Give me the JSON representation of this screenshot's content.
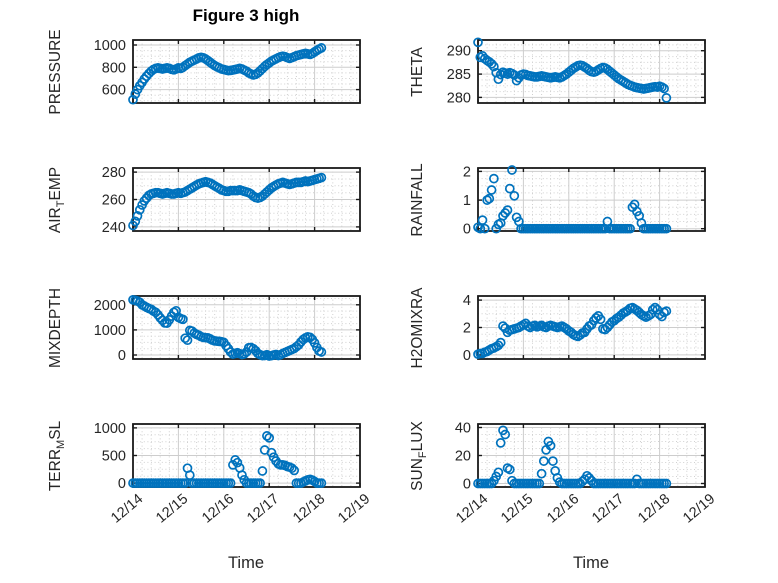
{
  "figure": {
    "title": "Figure 3 high",
    "xlabel": "Time",
    "marker_color": "#0072BD",
    "axis_color": "#1a1a1a",
    "major_grid_color": "#cdcdcd",
    "minor_grid_color": "#d0d0d0",
    "tick_label_color": "#262626",
    "background": "#ffffff"
  },
  "x_axis": {
    "label": "Time",
    "tick_labels": [
      "12/14",
      "12/15",
      "12/16",
      "12/17",
      "12/18",
      "12/19"
    ],
    "tick_positions_days": [
      0,
      1,
      2,
      3,
      4,
      5
    ],
    "xlim_days": [
      0,
      5
    ]
  },
  "x_days": [
    0,
    0.05,
    0.1,
    0.15,
    0.2,
    0.25,
    0.3,
    0.35,
    0.4,
    0.45,
    0.5,
    0.55,
    0.6,
    0.65,
    0.7,
    0.75,
    0.8,
    0.85,
    0.9,
    0.95,
    1,
    1.05,
    1.1,
    1.15,
    1.2,
    1.25,
    1.3,
    1.35,
    1.4,
    1.45,
    1.5,
    1.55,
    1.6,
    1.65,
    1.7,
    1.75,
    1.8,
    1.85,
    1.9,
    1.95,
    2,
    2.05,
    2.1,
    2.15,
    2.2,
    2.25,
    2.3,
    2.35,
    2.4,
    2.45,
    2.5,
    2.55,
    2.6,
    2.65,
    2.7,
    2.75,
    2.8,
    2.85,
    2.9,
    2.95,
    3,
    3.05,
    3.1,
    3.15,
    3.2,
    3.25,
    3.3,
    3.35,
    3.4,
    3.45,
    3.5,
    3.55,
    3.6,
    3.65,
    3.7,
    3.75,
    3.8,
    3.85,
    3.9,
    3.95,
    4,
    4.05,
    4.1,
    4.15
  ],
  "chart_data": [
    {
      "type": "scatter",
      "id": "pressure",
      "ylabel_pre": "PRESSURE",
      "ylabel_sub": "",
      "ylabel_post": "",
      "yticks": [
        600,
        800,
        1000
      ],
      "ylim": [
        480,
        1045
      ],
      "y": [
        510,
        560,
        600,
        635,
        665,
        695,
        720,
        745,
        765,
        780,
        790,
        795,
        790,
        785,
        790,
        795,
        790,
        782,
        778,
        785,
        795,
        790,
        800,
        815,
        830,
        845,
        855,
        865,
        875,
        885,
        890,
        885,
        875,
        860,
        845,
        830,
        815,
        805,
        795,
        785,
        780,
        775,
        770,
        772,
        776,
        780,
        785,
        790,
        785,
        775,
        765,
        750,
        740,
        732,
        737,
        750,
        768,
        788,
        808,
        824,
        840,
        855,
        866,
        876,
        886,
        895,
        900,
        895,
        886,
        880,
        886,
        895,
        904,
        910,
        915,
        920,
        925,
        920,
        916,
        924,
        938,
        952,
        963,
        974
      ]
    },
    {
      "type": "scatter",
      "id": "theta",
      "ylabel_pre": "THETA",
      "ylabel_sub": "",
      "ylabel_post": "",
      "yticks": [
        280,
        285,
        290
      ],
      "ylim": [
        278.8,
        292.3
      ],
      "y": [
        291.8,
        288.6,
        288.9,
        288.3,
        287.9,
        287.6,
        287.2,
        286.6,
        285.3,
        283.9,
        284.9,
        285.4,
        285.2,
        285.0,
        285.3,
        285.1,
        284.8,
        283.6,
        284.2,
        284.8,
        285.0,
        284.9,
        284.7,
        284.6,
        284.5,
        284.4,
        284.4,
        284.5,
        284.6,
        284.5,
        284.4,
        284.3,
        284.2,
        284.3,
        284.4,
        284.3,
        284.2,
        284.4,
        284.7,
        285.0,
        285.4,
        285.8,
        286.2,
        286.5,
        286.8,
        286.9,
        286.8,
        286.5,
        286.2,
        285.8,
        285.5,
        285.4,
        285.6,
        285.9,
        286.2,
        286.4,
        286.3,
        286.0,
        285.6,
        285.2,
        284.8,
        284.4,
        284.0,
        283.7,
        283.4,
        283.1,
        282.8,
        282.6,
        282.4,
        282.2,
        282.1,
        282.0,
        281.9,
        281.8,
        281.9,
        282.0,
        282.1,
        282.2,
        282.3,
        282.2,
        282.4,
        282.2,
        281.9,
        279.9
      ]
    },
    {
      "type": "scatter",
      "id": "air_temp",
      "ylabel_pre": "AIR",
      "ylabel_sub": "T",
      "ylabel_post": "EMP",
      "yticks": [
        240,
        260,
        280
      ],
      "ylim": [
        237,
        283
      ],
      "y": [
        241,
        244,
        248,
        252.5,
        256,
        259,
        261,
        263,
        264,
        264.5,
        265,
        265,
        264.5,
        264,
        264.5,
        265,
        264.5,
        264,
        264,
        264.5,
        265,
        264.5,
        265,
        265.5,
        266.5,
        267.5,
        268.5,
        269.5,
        270.5,
        271.5,
        272,
        272.5,
        273,
        272.5,
        272,
        271,
        270,
        269,
        268,
        267,
        266.5,
        266,
        266,
        266.5,
        266.5,
        266.5,
        266.5,
        267,
        266.5,
        266,
        265.5,
        265,
        264,
        262.5,
        261.5,
        261,
        261.5,
        262.5,
        264,
        265.5,
        267,
        268.5,
        269.5,
        270.5,
        271.5,
        272,
        272.5,
        272,
        271.5,
        271,
        271.5,
        272,
        272.5,
        272.5,
        272.5,
        273,
        273.5,
        273,
        273.5,
        274,
        274.5,
        275,
        275.5,
        276
      ]
    },
    {
      "type": "scatter",
      "id": "rainfall",
      "ylabel_pre": "RAINFALL",
      "ylabel_sub": "",
      "ylabel_post": "",
      "yticks": [
        0,
        1,
        2
      ],
      "ylim": [
        -0.08,
        2.12
      ],
      "y": [
        0.05,
        0,
        0.3,
        0,
        1,
        1.05,
        1.35,
        1.75,
        0,
        0.15,
        0.2,
        0.45,
        0.55,
        0.65,
        1.4,
        2.05,
        1.15,
        0.4,
        0.25,
        0,
        0,
        0,
        0,
        0,
        0,
        0,
        0,
        0,
        0,
        0,
        0,
        0,
        0,
        0,
        0,
        0,
        0,
        0,
        0,
        0,
        0,
        0,
        0,
        0,
        0,
        0,
        0,
        0,
        0,
        0,
        0,
        0,
        0,
        0,
        0,
        0,
        0,
        0.25,
        0,
        0,
        0,
        0,
        0,
        0,
        0,
        0,
        0,
        0,
        0.75,
        0.85,
        0.6,
        0.45,
        0.2,
        0,
        0,
        0,
        0,
        0,
        0,
        0,
        0,
        0,
        0,
        0
      ]
    },
    {
      "type": "scatter",
      "id": "mixdepth",
      "ylabel_pre": "MIXDEPTH",
      "ylabel_sub": "",
      "ylabel_post": "",
      "yticks": [
        0,
        1000,
        2000
      ],
      "ylim": [
        -160,
        2350
      ],
      "y": [
        2200,
        2180,
        2150,
        2100,
        2000,
        1950,
        1900,
        1850,
        1820,
        1750,
        1700,
        1600,
        1480,
        1380,
        1280,
        1270,
        1400,
        1550,
        1700,
        1760,
        1500,
        1450,
        1420,
        670,
        590,
        980,
        950,
        870,
        820,
        790,
        730,
        700,
        690,
        680,
        640,
        590,
        560,
        550,
        540,
        530,
        500,
        370,
        250,
        120,
        30,
        60,
        90,
        50,
        20,
        40,
        120,
        290,
        300,
        250,
        170,
        60,
        10,
        -30,
        -20,
        10,
        -40,
        -30,
        0,
        20,
        -20,
        10,
        60,
        100,
        140,
        180,
        220,
        260,
        330,
        400,
        520,
        620,
        680,
        720,
        700,
        620,
        480,
        300,
        160,
        120
      ]
    },
    {
      "type": "scatter",
      "id": "h2omixra",
      "ylabel_pre": "H2OMIXRA",
      "ylabel_sub": "",
      "ylabel_post": "",
      "yticks": [
        0,
        2,
        4
      ],
      "ylim": [
        -0.3,
        4.3
      ],
      "y": [
        0.05,
        0.1,
        0.1,
        0.2,
        0.25,
        0.35,
        0.45,
        0.5,
        0.6,
        0.7,
        0.9,
        2.1,
        1.95,
        1.65,
        1.8,
        1.85,
        1.9,
        1.95,
        2,
        2.1,
        2.2,
        2.3,
        2.1,
        2,
        2.1,
        2.15,
        2.05,
        2.1,
        2.15,
        2.05,
        2,
        2.1,
        2.15,
        2.1,
        2.05,
        2,
        2.05,
        2.1,
        2,
        1.9,
        1.75,
        1.65,
        1.5,
        1.4,
        1.35,
        1.45,
        1.6,
        1.65,
        1.9,
        2.1,
        2.2,
        2.5,
        2.7,
        2.85,
        2.6,
        1.9,
        1.85,
        2,
        2.2,
        2.4,
        2.5,
        2.65,
        2.75,
        2.9,
        3.05,
        3.15,
        3.25,
        3.4,
        3.45,
        3.35,
        3.25,
        3.1,
        2.95,
        2.85,
        2.75,
        2.85,
        2.95,
        3.3,
        3.45,
        3.3,
        2.95,
        2.8,
        3.1,
        3.2
      ]
    },
    {
      "type": "scatter",
      "id": "terr_msl",
      "ylabel_pre": "TERR",
      "ylabel_sub": "M",
      "ylabel_post": "SL",
      "yticks": [
        0,
        500,
        1000
      ],
      "ylim": [
        -70,
        1070
      ],
      "y": [
        0,
        0,
        0,
        0,
        0,
        0,
        0,
        0,
        0,
        0,
        0,
        0,
        0,
        0,
        0,
        0,
        0,
        0,
        0,
        0,
        0,
        0,
        0,
        0,
        270,
        145,
        0,
        0,
        0,
        0,
        0,
        0,
        0,
        0,
        0,
        0,
        0,
        0,
        0,
        0,
        0,
        0,
        0,
        0,
        330,
        420,
        370,
        275,
        145,
        60,
        0,
        0,
        0,
        0,
        0,
        0,
        0,
        220,
        600,
        855,
        820,
        550,
        470,
        400,
        350,
        330,
        330,
        320,
        300,
        290,
        270,
        230,
        0,
        0,
        0,
        20,
        40,
        60,
        70,
        55,
        30,
        0,
        0,
        0
      ]
    },
    {
      "type": "scatter",
      "id": "sun_flux",
      "ylabel_pre": "SUN",
      "ylabel_sub": "F",
      "ylabel_post": "LUX",
      "yticks": [
        0,
        20,
        40
      ],
      "ylim": [
        -2.5,
        42.5
      ],
      "y": [
        0,
        0,
        0,
        0,
        0,
        0,
        0,
        2,
        5,
        8,
        29,
        38,
        35,
        11,
        10,
        2,
        0,
        0,
        0,
        0,
        0,
        0,
        0,
        0,
        0,
        0,
        0,
        0,
        7,
        16,
        24,
        30,
        27,
        16,
        9,
        4,
        1,
        0,
        0,
        0,
        0,
        0,
        0,
        0,
        0,
        0,
        1.5,
        3,
        5.5,
        4,
        2,
        0,
        0,
        0,
        0,
        0,
        0,
        0,
        0,
        0,
        0,
        0,
        0,
        0,
        0,
        0,
        0,
        0,
        0,
        0,
        3,
        0,
        0,
        0,
        0,
        0,
        0,
        0,
        0,
        0,
        0,
        0,
        0,
        0
      ]
    }
  ]
}
